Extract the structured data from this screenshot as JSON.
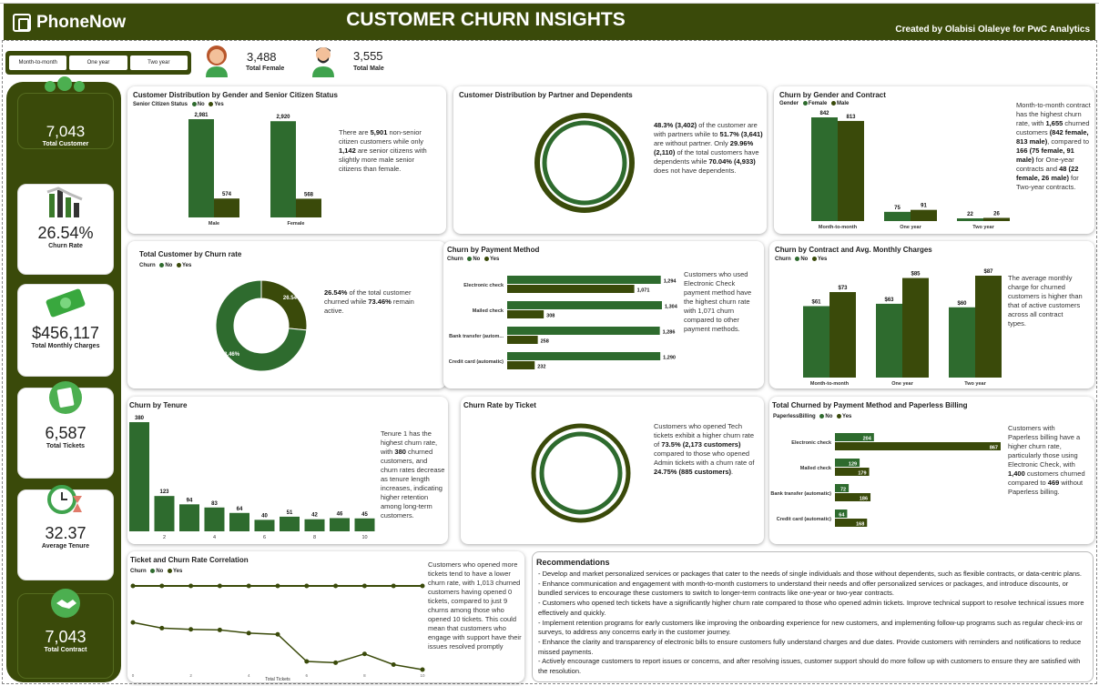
{
  "app": {
    "logo": "PhoneNow",
    "title": "CUSTOMER CHURN INSIGHTS",
    "credit": "Created by Olabisi Olaleye for PwC Analytics"
  },
  "contract_filter": {
    "options": [
      "Month-to-month",
      "One year",
      "Two year"
    ]
  },
  "top_kpis": {
    "female_value": "3,488",
    "female_label": "Total Female",
    "male_value": "3,555",
    "male_label": "Total Male"
  },
  "sidebar": {
    "cards": [
      {
        "value": "7,043",
        "label": "Total Customer"
      },
      {
        "value": "26.54%",
        "label": "Churn Rate"
      },
      {
        "value": "$456,117",
        "label": "Total Monthly Charges"
      },
      {
        "value": "6,587",
        "label": "Total Tickets"
      },
      {
        "value": "32.37",
        "label": "Average Tenure"
      },
      {
        "value": "7,043",
        "label": "Total Contract"
      }
    ]
  },
  "colors": {
    "dark": "#3a4a0a",
    "mid": "#2e6b2e",
    "accent": "#4caf50"
  },
  "legend_labels": {
    "no": "No",
    "yes": "Yes",
    "female": "Female",
    "male": "Male"
  },
  "panels": {
    "gender_senior": {
      "title": "Customer Distribution by Gender and Senior Citizen Status",
      "legend_title": "Senior Citizen Status",
      "text": [
        "There are ",
        "5,901",
        " non-senior citizen customers while only ",
        "1,142",
        " are senior citizens with slightly more male senior citizens than female."
      ]
    },
    "partner": {
      "title": "Customer Distribution by Partner and Dependents",
      "text": [
        "48.3% (3,402)",
        " of the customer are with partners while to ",
        "51.7% (3,641)",
        " are without partner. Only ",
        "29.96% (2,110)",
        " of the total customers have dependents while ",
        "70.04% (4,933)",
        " does not have dependents."
      ]
    },
    "gender_contract": {
      "title": "Churn by Gender and Contract",
      "legend_title": "Gender",
      "text": [
        "Month-to-month contract has the highest churn rate, with ",
        "1,655",
        " churned customers ",
        "(842 female, 813 male)",
        ", compared to ",
        "166 (75 female, 91 male)",
        " for One-year contracts and ",
        "48 (22 female, 26 male)",
        " for Two-year contracts."
      ]
    },
    "churn_rate": {
      "title": "Total Customer by Churn rate",
      "legend_title": "Churn",
      "text": [
        "26.54%",
        " of the total customer churned while ",
        "73.46%",
        " remain active."
      ]
    },
    "payment": {
      "title": "Churn by Payment Method",
      "legend_title": "Churn",
      "text": [
        "Customers who used Electronic Check payment method have the highest churn rate with 1,071 churn compared to other payment methods."
      ]
    },
    "contract_charges": {
      "title": "Churn by Contract and Avg. Monthly Charges",
      "legend_title": "Churn",
      "text": [
        "The average monthly charge for churned customers is higher than that of active customers across all contract types."
      ]
    },
    "tenure": {
      "title": "Churn by Tenure",
      "text": [
        "Tenure 1 has the highest churn rate, with ",
        "380",
        " churned customers, and churn rates decrease as tenure length increases, indicating higher retention among long-term customers."
      ]
    },
    "ticket_rate": {
      "title": "Churn Rate by Ticket",
      "text": [
        "Customers who opened Tech tickets exhibit a higher churn rate of ",
        "73.5% (2,173 customers)",
        " compared to those who opened Admin tickets with a churn rate of ",
        "24.75% (885 customers)",
        "."
      ]
    },
    "paperless": {
      "title": "Total Churned by Payment Method and Paperless Billing",
      "legend_title": "PaperlessBilling",
      "text": [
        "Customers with Paperless billing have a higher churn rate, particularly those using Electronic Check, with ",
        "1,400",
        " customers churned compared to ",
        "469",
        " without Paperless billing."
      ]
    },
    "correlation": {
      "title": "Ticket and Churn Rate Correlation",
      "legend_title": "Churn",
      "text": [
        "Customers who opened more tickets tend to have a lower churn rate, with 1,013 churned customers having opened 0 tickets, compared to just 9 churns among those who opened 10 tickets. This could mean that customers who engage with support have their issues resolved promptly"
      ]
    }
  },
  "recommendations": {
    "title": "Recommendations",
    "items": [
      "Develop and market personalized services or packages that cater to the needs of single individuals and those without dependents, such as flexible contracts, or data-centric plans.",
      "Enhance communication and engagement with month-to-month customers to understand their needs and offer personalized services or packages, and introduce discounts, or bundled services to encourage these customers to switch to longer-term contracts like one-year or two-year contracts.",
      "Customers who opened tech tickets have a significantly higher churn rate compared to those who opened admin tickets. Improve technical support to resolve technical issues more effectively and quickly.",
      "Implement retention programs for early customers like improving the onboarding experience for new customers, and implementing follow-up programs such as regular check-ins or surveys, to address any concerns early in the customer journey.",
      "Enhance the clarity and transparency of electronic bills to ensure customers fully understand charges and due dates. Provide customers with reminders and notifications to reduce missed payments.",
      "Actively encourage customers to report issues or concerns, and after resolving issues, customer support should do more follow up with customers to ensure they are satisfied with the resolution."
    ]
  },
  "chart_data": [
    {
      "id": "gender_senior",
      "type": "bar",
      "categories": [
        "Male",
        "Female"
      ],
      "series": [
        {
          "name": "No",
          "values": [
            2981,
            2920
          ]
        },
        {
          "name": "Yes",
          "values": [
            574,
            568
          ]
        }
      ]
    },
    {
      "id": "partner",
      "type": "pie",
      "title": "Customer Distribution by Partner and Dependents",
      "labels": [],
      "values": []
    },
    {
      "id": "gender_contract",
      "type": "bar",
      "categories": [
        "Month-to-month",
        "One year",
        "Two year"
      ],
      "series": [
        {
          "name": "Female",
          "values": [
            842,
            75,
            22
          ]
        },
        {
          "name": "Male",
          "values": [
            813,
            91,
            26
          ]
        }
      ]
    },
    {
      "id": "churn_rate",
      "type": "pie",
      "labels": [
        "Yes",
        "No"
      ],
      "values": [
        26.54,
        73.46
      ],
      "display": [
        "26.54%",
        "73.46%"
      ]
    },
    {
      "id": "payment",
      "type": "bar",
      "orientation": "horizontal",
      "categories": [
        "Electronic check",
        "Mailed check",
        "Bank transfer (autom...",
        "Credit card (automatic)"
      ],
      "series": [
        {
          "name": "No",
          "values": [
            1294,
            1304,
            1286,
            1290
          ]
        },
        {
          "name": "Yes",
          "values": [
            1071,
            308,
            258,
            232
          ]
        }
      ],
      "display_no": [
        "1,294",
        "1,304",
        "1,286",
        "1,290"
      ],
      "display_yes": [
        "1,071",
        "308",
        "258",
        "232"
      ]
    },
    {
      "id": "contract_charges",
      "type": "bar",
      "categories": [
        "Month-to-month",
        "One year",
        "Two year"
      ],
      "series": [
        {
          "name": "No",
          "values": [
            61,
            63,
            60
          ]
        },
        {
          "name": "Yes",
          "values": [
            73,
            85,
            87
          ]
        }
      ],
      "prefix": "$"
    },
    {
      "id": "tenure",
      "type": "bar",
      "x": [
        1,
        2,
        3,
        4,
        5,
        6,
        7,
        8,
        9,
        10
      ],
      "values": [
        380,
        123,
        94,
        83,
        64,
        40,
        51,
        42,
        46,
        45
      ],
      "xticks": [
        "2",
        "4",
        "6",
        "8",
        "10"
      ]
    },
    {
      "id": "ticket_rate",
      "type": "pie",
      "labels": [],
      "values": []
    },
    {
      "id": "paperless",
      "type": "bar",
      "orientation": "horizontal",
      "categories": [
        "Electronic check",
        "Mailed check",
        "Bank transfer (automatic)",
        "Credit card (automatic)"
      ],
      "series": [
        {
          "name": "No",
          "values": [
            204,
            129,
            72,
            64
          ]
        },
        {
          "name": "Yes",
          "values": [
            867,
            179,
            186,
            168
          ]
        }
      ]
    },
    {
      "id": "correlation",
      "type": "line",
      "xlabel": "Total Tickets",
      "xticks": [
        "0",
        "2",
        "4",
        "6",
        "8",
        "10"
      ],
      "series": [
        {
          "name": "No",
          "values": [
            1,
            1,
            1,
            1,
            1,
            1,
            1,
            1,
            1,
            1,
            1
          ]
        },
        {
          "name": "Yes",
          "values": [
            0.42,
            0.33,
            0.31,
            0.3,
            0.25,
            0.23,
            -0.2,
            -0.22,
            -0.08,
            -0.25,
            -0.33
          ]
        }
      ]
    }
  ]
}
